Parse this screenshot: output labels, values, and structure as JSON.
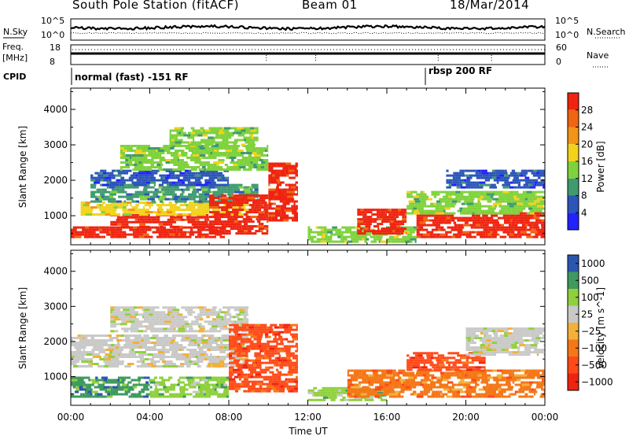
{
  "header": {
    "station": "South Pole Station (fitACF)",
    "beam": "Beam 01",
    "date": "18/Mar/2014"
  },
  "summary_panels": {
    "noise": {
      "left_label": "N.Sky",
      "right_label": "N.Search",
      "left_ticks": [
        "10^5",
        "10^0"
      ],
      "right_ticks": [
        "10^5",
        "10^0"
      ]
    },
    "freq": {
      "left_label_line1": "Freq.",
      "left_label_line2": "[MHz]",
      "right_label": "Nave",
      "left_ticks": [
        "18",
        "8"
      ],
      "right_ticks": [
        "60",
        "0"
      ]
    },
    "cpid": {
      "label": "CPID",
      "segments": [
        "normal (fast) -151 RF",
        "rbsp 200 RF"
      ],
      "change_time": "17:50"
    }
  },
  "colors": {
    "power_scale": [
      "#2222ff",
      "#2b55b8",
      "#3f9a6f",
      "#7fd23c",
      "#f2d21a",
      "#f29418",
      "#f06412",
      "#ee2410"
    ],
    "velocity_scale": [
      "#ee2410",
      "#ff4a18",
      "#f57718",
      "#f3b03a",
      "#c9c9c7",
      "#8fd03e",
      "#3e9a5e",
      "#2b56b0"
    ]
  },
  "chart_data": [
    {
      "type": "heatmap",
      "panel": "power",
      "xlabel": "",
      "ylabel": "Slant Range [km]",
      "xticks": [
        "00:00",
        "04:00",
        "08:00",
        "12:00",
        "16:00",
        "20:00",
        "00:00"
      ],
      "yticks": [
        1000,
        2000,
        3000,
        4000
      ],
      "xlim_hours": [
        0,
        24
      ],
      "ylim_km": [
        180,
        4600
      ],
      "colorbar": {
        "label": "Power [dB]",
        "ticks": [
          4,
          8,
          12,
          16,
          20,
          24,
          28
        ],
        "range": [
          0,
          32
        ]
      },
      "regions": [
        {
          "t0": 0.0,
          "t1": 7.8,
          "r0": 400,
          "r1": 700,
          "level": 7
        },
        {
          "t0": 2.0,
          "t1": 7.0,
          "r0": 700,
          "r1": 1050,
          "level": 7
        },
        {
          "t0": 0.5,
          "t1": 9.0,
          "r0": 1050,
          "r1": 1400,
          "level": 4
        },
        {
          "t0": 1.0,
          "t1": 9.5,
          "r0": 1400,
          "r1": 1900,
          "level": 2
        },
        {
          "t0": 1.0,
          "t1": 8.0,
          "r0": 1900,
          "r1": 2300,
          "level": 1
        },
        {
          "t0": 2.5,
          "t1": 10.0,
          "r0": 2300,
          "r1": 3000,
          "level": 3
        },
        {
          "t0": 5.0,
          "t1": 9.5,
          "r0": 3000,
          "r1": 3500,
          "level": 3
        },
        {
          "t0": 7.0,
          "t1": 10.0,
          "r0": 500,
          "r1": 1600,
          "level": 7
        },
        {
          "t0": 10.0,
          "t1": 11.5,
          "r0": 900,
          "r1": 2500,
          "level": 7
        },
        {
          "t0": 12.0,
          "t1": 17.5,
          "r0": 300,
          "r1": 700,
          "level": 3
        },
        {
          "t0": 14.5,
          "t1": 17.0,
          "r0": 500,
          "r1": 1200,
          "level": 7
        },
        {
          "t0": 17.5,
          "t1": 24.0,
          "r0": 400,
          "r1": 1100,
          "level": 7
        },
        {
          "t0": 17.0,
          "t1": 24.0,
          "r0": 1100,
          "r1": 1700,
          "level": 3
        },
        {
          "t0": 19.0,
          "t1": 24.0,
          "r0": 1800,
          "r1": 2300,
          "level": 1
        }
      ]
    },
    {
      "type": "heatmap",
      "panel": "velocity",
      "xlabel": "Time UT",
      "ylabel": "Slant Range [km]",
      "xticks": [
        "00:00",
        "04:00",
        "08:00",
        "12:00",
        "16:00",
        "20:00",
        "00:00"
      ],
      "yticks": [
        1000,
        2000,
        3000,
        4000
      ],
      "xlim_hours": [
        0,
        24
      ],
      "ylim_km": [
        180,
        4600
      ],
      "colorbar": {
        "label": "Velocity [m s^-1]",
        "ticks": [
          "1000",
          "500",
          "100",
          "25",
          "−25",
          "−100",
          "−500",
          "−1000"
        ]
      },
      "regions": [
        {
          "t0": 0.0,
          "t1": 4.0,
          "r0": 400,
          "r1": 1000,
          "level": 6
        },
        {
          "t0": 4.0,
          "t1": 8.0,
          "r0": 400,
          "r1": 1000,
          "level": 5
        },
        {
          "t0": 0.0,
          "t1": 9.0,
          "r0": 1300,
          "r1": 2200,
          "level": 4
        },
        {
          "t0": 2.0,
          "t1": 9.0,
          "r0": 2300,
          "r1": 3000,
          "level": 4
        },
        {
          "t0": 8.0,
          "t1": 11.5,
          "r0": 600,
          "r1": 2500,
          "level": 1
        },
        {
          "t0": 12.0,
          "t1": 16.0,
          "r0": 300,
          "r1": 700,
          "level": 5
        },
        {
          "t0": 14.0,
          "t1": 24.0,
          "r0": 400,
          "r1": 1200,
          "level": 2
        },
        {
          "t0": 17.0,
          "t1": 21.0,
          "r0": 1200,
          "r1": 1700,
          "level": 1
        },
        {
          "t0": 20.0,
          "t1": 24.0,
          "r0": 1600,
          "r1": 2400,
          "level": 4
        }
      ]
    }
  ]
}
